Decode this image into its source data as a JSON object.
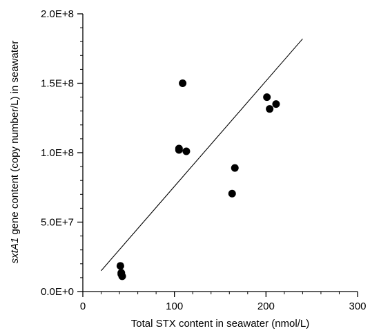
{
  "chart_data": {
    "type": "scatter",
    "xlabel": "Total STX content in seawater (nmol/L)",
    "ylabel_parts": [
      "sxtA1",
      " gene content (copy number/L) in seawater"
    ],
    "xlim": [
      0,
      300
    ],
    "ylim": [
      0,
      200000000
    ],
    "xticks": [
      {
        "value": 0,
        "label": "0"
      },
      {
        "value": 100,
        "label": "100"
      },
      {
        "value": 200,
        "label": "200"
      },
      {
        "value": 300,
        "label": "300"
      }
    ],
    "yticks": [
      {
        "value": 0,
        "label": "0.0E+0"
      },
      {
        "value": 50000000,
        "label": "5.0E+7"
      },
      {
        "value": 100000000,
        "label": "1.0E+8"
      },
      {
        "value": 150000000,
        "label": "1.5E+8"
      },
      {
        "value": 200000000,
        "label": "2.0E+8"
      }
    ],
    "x_minor_step": 20,
    "y_minor_step": 10000000,
    "grid": false,
    "points": [
      {
        "x": 41,
        "y": 18500000
      },
      {
        "x": 42,
        "y": 13500000
      },
      {
        "x": 42,
        "y": 12500000
      },
      {
        "x": 43,
        "y": 11000000
      },
      {
        "x": 105,
        "y": 103000000
      },
      {
        "x": 105,
        "y": 102000000
      },
      {
        "x": 109,
        "y": 150000000
      },
      {
        "x": 113,
        "y": 101000000
      },
      {
        "x": 163,
        "y": 70500000
      },
      {
        "x": 166,
        "y": 89000000
      },
      {
        "x": 201,
        "y": 140000000
      },
      {
        "x": 204,
        "y": 131500000
      },
      {
        "x": 211,
        "y": 135000000
      }
    ],
    "trendline": {
      "x": [
        20,
        240
      ],
      "y": [
        15000000,
        182000000
      ]
    },
    "colors": {
      "points": "#000000",
      "line": "#000000",
      "axis": "#000000"
    }
  }
}
